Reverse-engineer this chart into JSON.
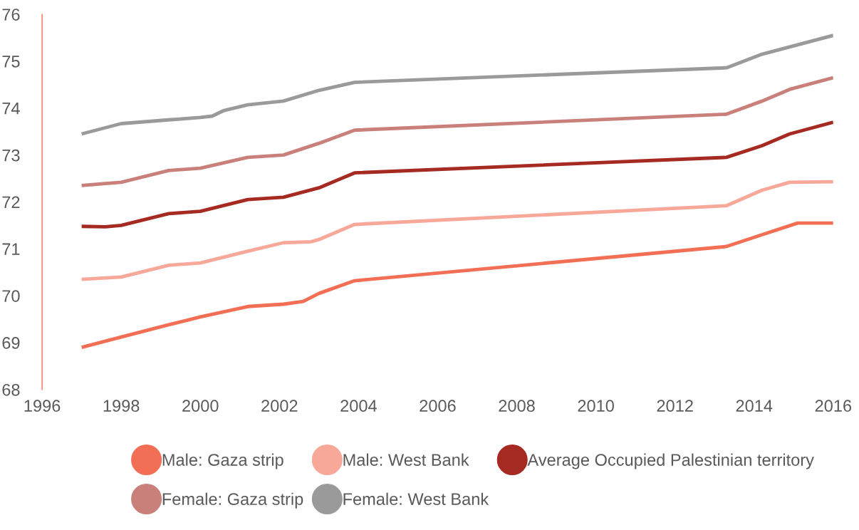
{
  "chart_data": {
    "type": "line",
    "xlim": [
      1996,
      2016
    ],
    "xticks": [
      1996,
      1998,
      2000,
      2002,
      2004,
      2006,
      2008,
      2010,
      2012,
      2014,
      2016
    ],
    "ylim": [
      68,
      76
    ],
    "yticks": [
      68,
      69,
      70,
      71,
      72,
      73,
      74,
      75,
      76
    ],
    "grid": false,
    "legend": "bottom",
    "marker": "none",
    "line_style": "solid",
    "series": [
      {
        "name": "Male: Gaza strip",
        "color": "#f26f55",
        "x": [
          1997,
          1998,
          1999.2,
          2000,
          2001.2,
          2002.1,
          2002.6,
          2003,
          2003.9,
          2013.3,
          2014.2,
          2015.1,
          2016
        ],
        "values": [
          68.9,
          69.12,
          69.38,
          69.55,
          69.77,
          69.82,
          69.88,
          70.05,
          70.32,
          71.05,
          71.3,
          71.55,
          71.55
        ]
      },
      {
        "name": "Male: West Bank",
        "color": "#f7a899",
        "x": [
          1997,
          1998,
          1999.2,
          2000,
          2001.2,
          2002.1,
          2002.8,
          2003,
          2003.9,
          2013.3,
          2014.2,
          2014.9,
          2016
        ],
        "values": [
          70.35,
          70.4,
          70.65,
          70.7,
          70.95,
          71.13,
          71.15,
          71.2,
          71.52,
          71.92,
          72.25,
          72.42,
          72.43
        ]
      },
      {
        "name": "Average Occupied Palestinian territory",
        "color": "#a52a22",
        "x": [
          1997,
          1997.6,
          1998,
          1999.2,
          2000,
          2001.2,
          2002.1,
          2003,
          2003.9,
          2013.3,
          2014.2,
          2014.9,
          2016
        ],
        "values": [
          71.48,
          71.47,
          71.5,
          71.75,
          71.8,
          72.05,
          72.1,
          72.3,
          72.62,
          72.95,
          73.2,
          73.45,
          73.7
        ]
      },
      {
        "name": "Female: Gaza strip",
        "color": "#c9807a",
        "x": [
          1997,
          1998,
          1999.2,
          2000,
          2001.2,
          2002.1,
          2003,
          2003.9,
          2013.3,
          2014.2,
          2014.9,
          2016
        ],
        "values": [
          72.35,
          72.42,
          72.67,
          72.72,
          72.95,
          73.0,
          73.25,
          73.53,
          73.87,
          74.15,
          74.4,
          74.65
        ]
      },
      {
        "name": "Female: West Bank",
        "color": "#9a9a9a",
        "x": [
          1997,
          1998,
          1999.2,
          2000,
          2000.3,
          2000.6,
          2001.2,
          2002.1,
          2003,
          2003.9,
          2013.3,
          2014.2,
          2016
        ],
        "values": [
          73.45,
          73.67,
          73.75,
          73.8,
          73.83,
          73.95,
          74.07,
          74.15,
          74.38,
          74.55,
          74.86,
          75.15,
          75.55
        ]
      }
    ]
  }
}
